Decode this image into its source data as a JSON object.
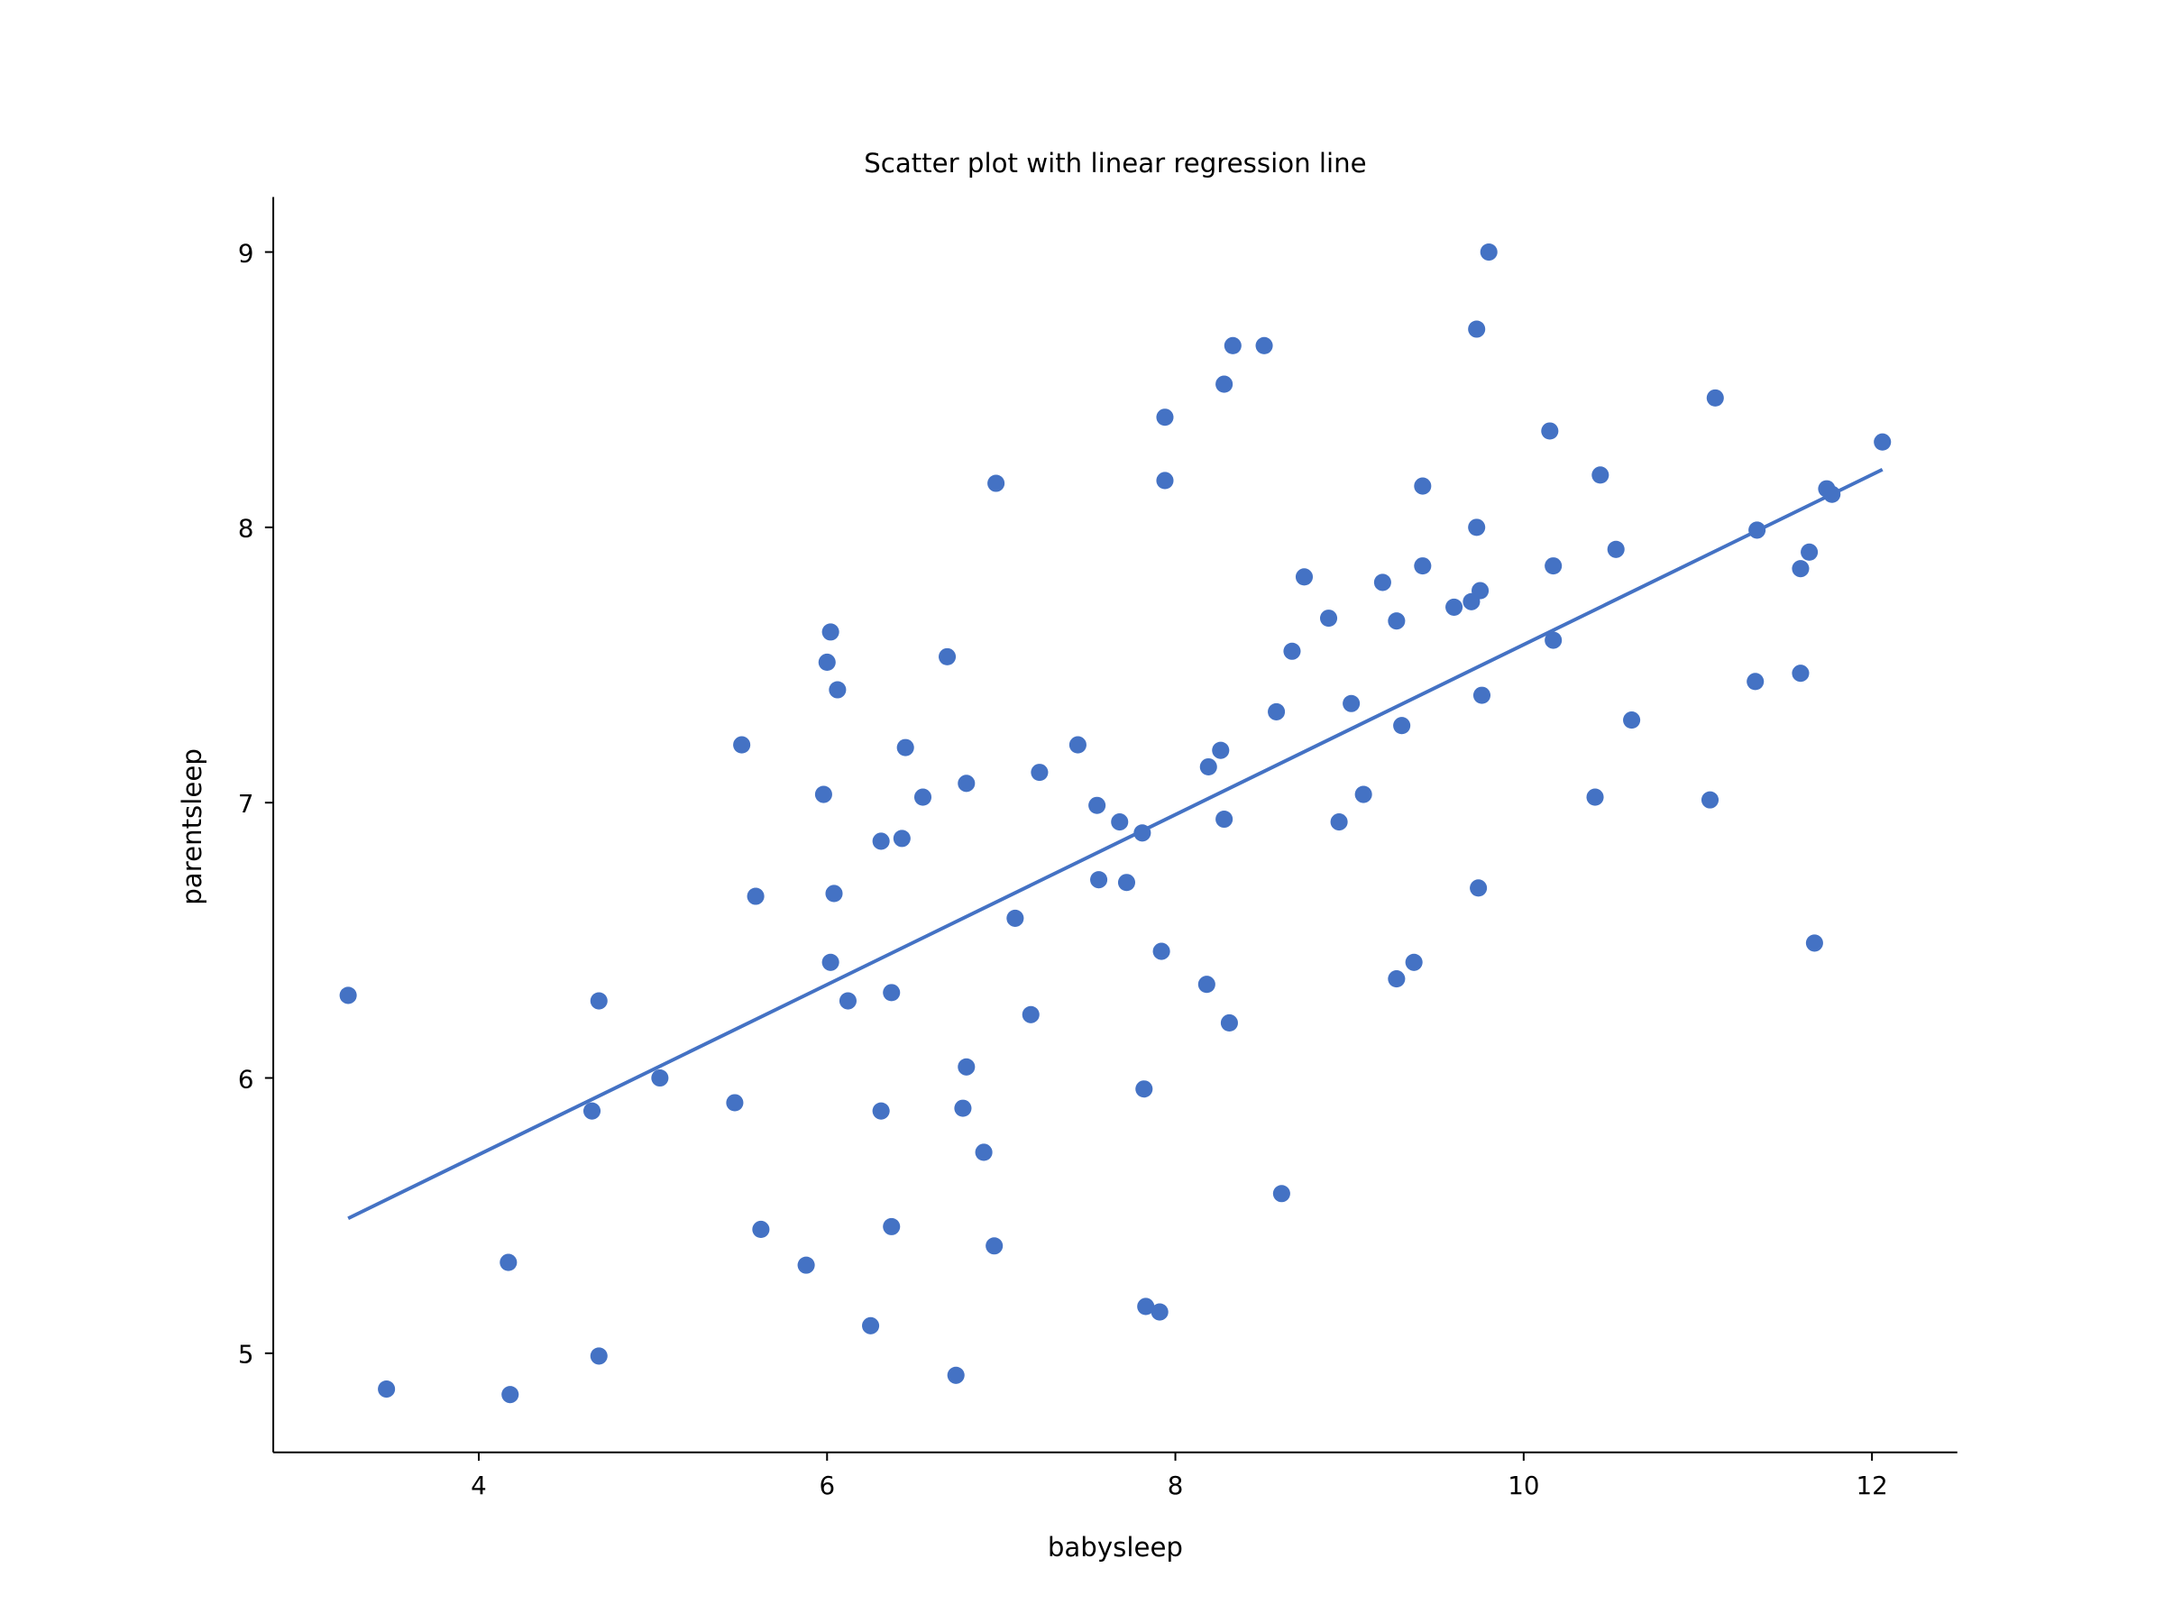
{
  "chart_data": {
    "type": "scatter",
    "title": "Scatter plot with linear regression line",
    "xlabel": "babysleep",
    "ylabel": "parentsleep",
    "xlim": [
      2.82,
      12.49
    ],
    "ylim": [
      4.64,
      9.2
    ],
    "xticks": [
      4,
      6,
      8,
      10,
      12
    ],
    "yticks": [
      5,
      6,
      7,
      8,
      9
    ],
    "grid": false,
    "point_color": "#4472c4",
    "line_color": "#4472c4",
    "regression_line": {
      "x": [
        3.25,
        12.06
      ],
      "y": [
        5.49,
        8.21
      ]
    },
    "points": [
      [
        3.25,
        6.3
      ],
      [
        3.47,
        4.87
      ],
      [
        4.17,
        5.33
      ],
      [
        4.18,
        4.85
      ],
      [
        4.69,
        4.99
      ],
      [
        4.69,
        6.28
      ],
      [
        4.65,
        5.88
      ],
      [
        5.04,
        6.0
      ],
      [
        5.47,
        5.91
      ],
      [
        5.51,
        7.21
      ],
      [
        5.59,
        6.66
      ],
      [
        5.62,
        5.45
      ],
      [
        5.88,
        5.32
      ],
      [
        5.98,
        7.03
      ],
      [
        6.0,
        7.51
      ],
      [
        6.02,
        7.62
      ],
      [
        6.06,
        7.41
      ],
      [
        6.02,
        6.42
      ],
      [
        6.04,
        6.67
      ],
      [
        6.12,
        6.28
      ],
      [
        6.25,
        5.1
      ],
      [
        6.31,
        6.86
      ],
      [
        6.31,
        5.88
      ],
      [
        6.37,
        6.31
      ],
      [
        6.37,
        5.46
      ],
      [
        6.43,
        6.87
      ],
      [
        6.45,
        7.2
      ],
      [
        6.55,
        7.02
      ],
      [
        6.69,
        7.53
      ],
      [
        6.74,
        4.92
      ],
      [
        6.78,
        5.89
      ],
      [
        6.8,
        6.04
      ],
      [
        6.8,
        7.07
      ],
      [
        6.9,
        5.73
      ],
      [
        6.96,
        5.39
      ],
      [
        6.97,
        8.16
      ],
      [
        7.08,
        6.58
      ],
      [
        7.17,
        6.23
      ],
      [
        7.22,
        7.11
      ],
      [
        7.44,
        7.21
      ],
      [
        7.55,
        6.99
      ],
      [
        7.56,
        6.72
      ],
      [
        7.68,
        6.93
      ],
      [
        7.72,
        6.71
      ],
      [
        7.81,
        6.89
      ],
      [
        7.82,
        5.96
      ],
      [
        7.83,
        5.17
      ],
      [
        7.91,
        5.15
      ],
      [
        7.92,
        6.46
      ],
      [
        7.94,
        8.4
      ],
      [
        7.94,
        8.17
      ],
      [
        8.18,
        6.34
      ],
      [
        8.19,
        7.13
      ],
      [
        8.26,
        7.19
      ],
      [
        8.28,
        6.94
      ],
      [
        8.28,
        8.52
      ],
      [
        8.31,
        6.2
      ],
      [
        8.33,
        8.66
      ],
      [
        8.51,
        8.66
      ],
      [
        8.58,
        7.33
      ],
      [
        8.61,
        5.58
      ],
      [
        8.67,
        7.55
      ],
      [
        8.74,
        7.82
      ],
      [
        8.88,
        7.67
      ],
      [
        8.94,
        6.93
      ],
      [
        9.01,
        7.36
      ],
      [
        9.08,
        7.03
      ],
      [
        9.19,
        7.8
      ],
      [
        9.27,
        7.66
      ],
      [
        9.27,
        6.36
      ],
      [
        9.3,
        7.28
      ],
      [
        9.37,
        6.42
      ],
      [
        9.42,
        8.15
      ],
      [
        9.42,
        7.86
      ],
      [
        9.6,
        7.71
      ],
      [
        9.7,
        7.73
      ],
      [
        9.73,
        8.72
      ],
      [
        9.73,
        8.0
      ],
      [
        9.74,
        6.69
      ],
      [
        9.75,
        7.77
      ],
      [
        9.76,
        7.39
      ],
      [
        9.8,
        9.0
      ],
      [
        10.15,
        8.35
      ],
      [
        10.17,
        7.86
      ],
      [
        10.17,
        7.59
      ],
      [
        10.41,
        7.02
      ],
      [
        10.44,
        8.19
      ],
      [
        10.53,
        7.92
      ],
      [
        10.62,
        7.3
      ],
      [
        11.07,
        7.01
      ],
      [
        11.1,
        8.47
      ],
      [
        11.33,
        7.44
      ],
      [
        11.34,
        7.99
      ],
      [
        11.59,
        7.47
      ],
      [
        11.59,
        7.85
      ],
      [
        11.64,
        7.91
      ],
      [
        11.67,
        6.49
      ],
      [
        11.74,
        8.14
      ],
      [
        11.77,
        8.12
      ],
      [
        12.06,
        8.31
      ]
    ]
  }
}
